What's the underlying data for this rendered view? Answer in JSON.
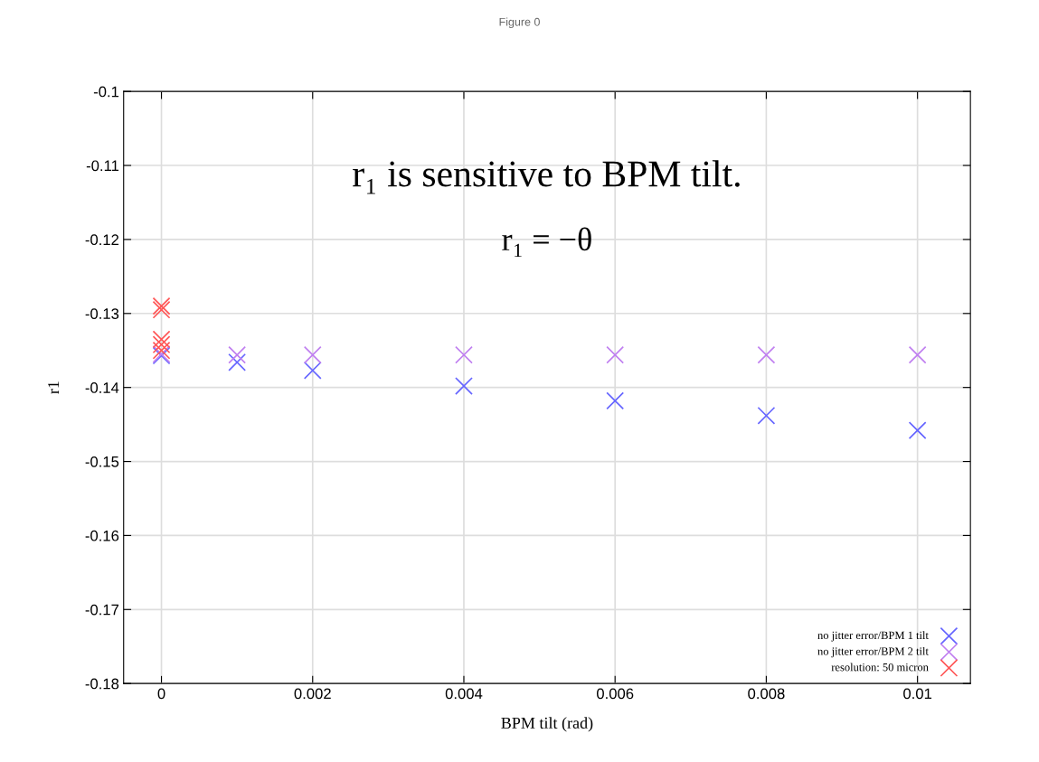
{
  "chart_data": {
    "type": "scatter",
    "title": "Figure 0",
    "xlabel": "BPM tilt (rad)",
    "ylabel": "r1",
    "annotations": [
      "r₁ is sensitive to BPM tilt.",
      "r₁ = −θ"
    ],
    "xlim": [
      -0.0005,
      0.0107
    ],
    "xticks": [
      0,
      0.002,
      0.004,
      0.006,
      0.008,
      0.01
    ],
    "ylim": [
      -0.18,
      -0.1
    ],
    "yticks": [
      -0.18,
      -0.17,
      -0.16,
      -0.15,
      -0.14,
      -0.13,
      -0.12,
      -0.11,
      -0.1
    ],
    "grid": true,
    "legend": "bottom right",
    "marker": "cross",
    "series": [
      {
        "name": "no jitter error/BPM 1 tilt",
        "color": "#6666ff",
        "x": [
          0,
          0.001,
          0.002,
          0.004,
          0.006,
          0.008,
          0.01
        ],
        "values": [
          -0.1357,
          -0.1366,
          -0.1377,
          -0.1398,
          -0.1418,
          -0.1438,
          -0.1458
        ]
      },
      {
        "name": "no jitter error/BPM 2 tilt",
        "color": "#c080f0",
        "x": [
          0,
          0.001,
          0.002,
          0.004,
          0.006,
          0.008,
          0.01
        ],
        "values": [
          -0.1355,
          -0.1356,
          -0.1356,
          -0.1356,
          -0.1356,
          -0.1356,
          -0.1356
        ]
      },
      {
        "name": "resolution: 50 micron",
        "color": "#ff5555",
        "x": [
          0,
          0,
          0,
          0,
          0
        ],
        "values": [
          -0.129,
          -0.1295,
          -0.1335,
          -0.1342,
          -0.135
        ]
      }
    ]
  }
}
